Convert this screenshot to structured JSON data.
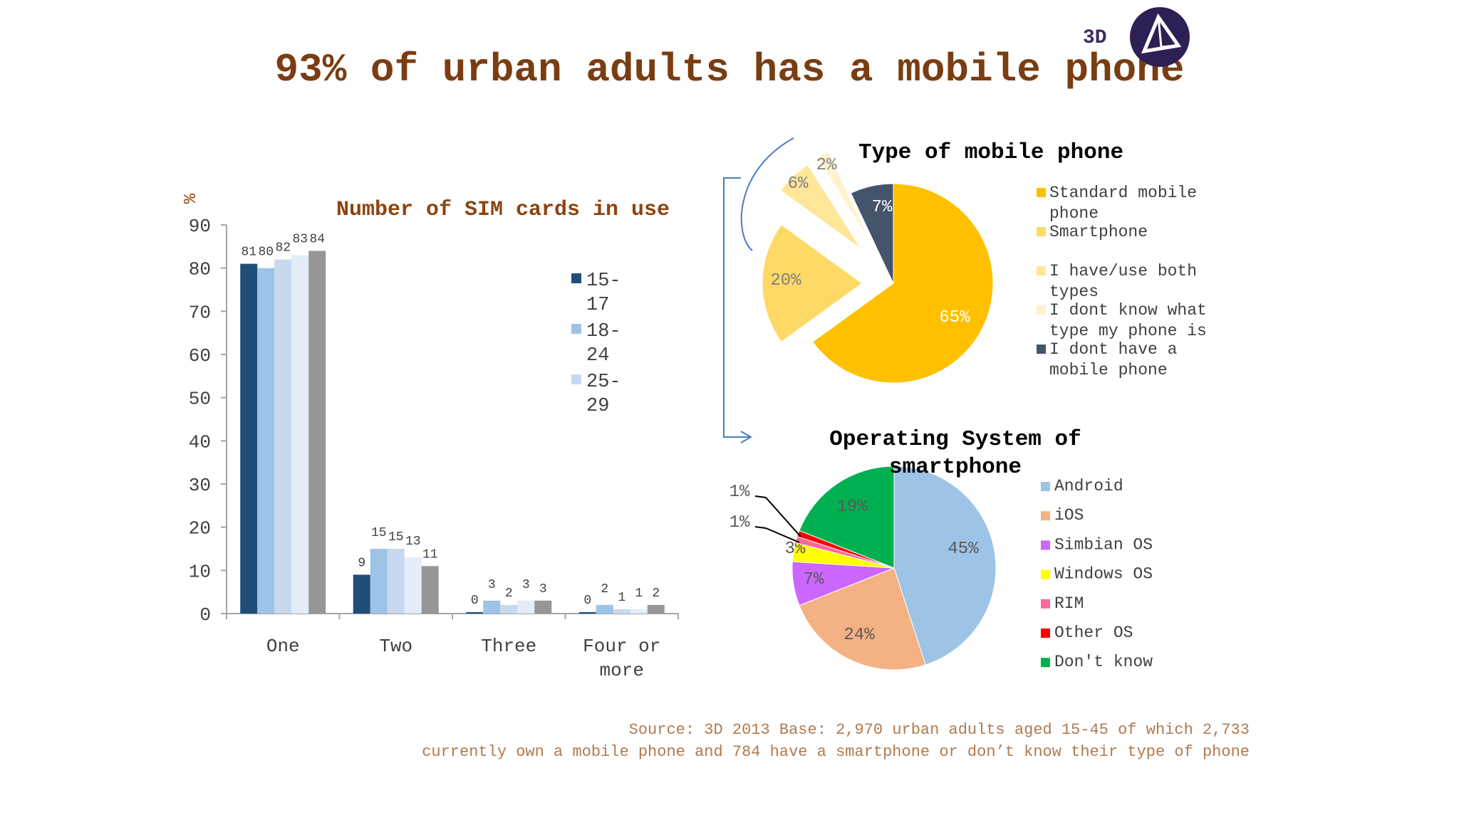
{
  "title": "93% of urban adults has a mobile phone",
  "logo": {
    "text": "3D",
    "icon": "diamond-logo-icon"
  },
  "source_line1": "Source: 3D 2013   Base: 2,970 urban adults aged 15-45 of which 2,733",
  "source_line2": "currently own a mobile phone and 784 have a smartphone or don’t know their type of phone",
  "colors": {
    "title": "#7a3d12",
    "chart_title": "#8b4513",
    "source": "#b07a4f"
  },
  "chart_data": [
    {
      "type": "bar",
      "title": "Number of SIM cards in use",
      "ylabel": "%",
      "ylim": [
        0,
        90
      ],
      "yticks": [
        0,
        10,
        20,
        30,
        40,
        50,
        60,
        70,
        80,
        90
      ],
      "categories": [
        "One",
        "Two",
        "Three",
        "Four or more"
      ],
      "legend_placement": "right",
      "legend_labels": [
        "15-17",
        "18-24",
        "25-29"
      ],
      "series": [
        {
          "name": "15-17",
          "color": "#1f4e79",
          "values": [
            81,
            9,
            0,
            0
          ]
        },
        {
          "name": "18-24",
          "color": "#9dc3e6",
          "values": [
            80,
            15,
            3,
            2
          ]
        },
        {
          "name": "25-29",
          "color": "#c6d9ef",
          "values": [
            82,
            15,
            2,
            1
          ]
        },
        {
          "color": "#e3ecf8",
          "values": [
            83,
            13,
            3,
            1
          ]
        },
        {
          "color": "#969696",
          "values": [
            84,
            11,
            3,
            2
          ]
        }
      ]
    },
    {
      "type": "pie",
      "title": "Type of mobile phone",
      "legend_placement": "right",
      "slices": [
        {
          "label": "Standard mobile phone",
          "value": 65,
          "color": "#ffc000"
        },
        {
          "label": "Smartphone",
          "value": 20,
          "color": "#ffd966"
        },
        {
          "label": "I have/use both types",
          "value": 6,
          "color": "#ffe699"
        },
        {
          "label": "I dont know what type my phone is",
          "value": 2,
          "color": "#fff2cc"
        },
        {
          "label": "I dont have a mobile phone",
          "value": 7,
          "color": "#44546a"
        }
      ]
    },
    {
      "type": "pie",
      "title": "Operating System of smartphone",
      "legend_placement": "right",
      "slices": [
        {
          "label": "Android",
          "value": 45,
          "color": "#9dc3e6"
        },
        {
          "label": "iOS",
          "value": 24,
          "color": "#f4b183"
        },
        {
          "label": "Simbian OS",
          "value": 7,
          "color": "#cc66ff"
        },
        {
          "label": "Windows OS",
          "value": 3,
          "color": "#ffff00"
        },
        {
          "label": "RIM",
          "value": 1,
          "color": "#ff6699"
        },
        {
          "label": "Other OS",
          "value": 1,
          "color": "#ff0000"
        },
        {
          "label": "Don't know",
          "value": 19,
          "color": "#00b050"
        }
      ]
    }
  ]
}
